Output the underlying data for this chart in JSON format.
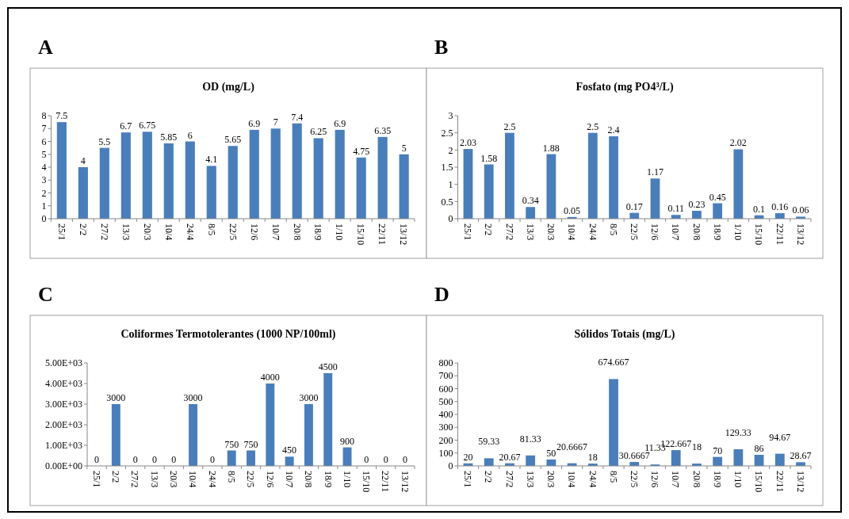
{
  "chart_data": [
    {
      "type": "bar",
      "title": "OD (mg/L)",
      "annotations": [
        "A"
      ],
      "categories": [
        "25/1",
        "2/2",
        "27/2",
        "13/3",
        "20/3",
        "10/4",
        "24/4",
        "8/5",
        "22/5",
        "12/6",
        "10/7",
        "20/8",
        "18/9",
        "1/10",
        "15/10",
        "22/11",
        "13/12"
      ],
      "values": [
        7.5,
        4,
        5.5,
        6.7,
        6.75,
        5.85,
        6,
        4.1,
        5.65,
        6.9,
        7,
        7.4,
        6.25,
        6.9,
        4.75,
        6.35,
        5
      ],
      "color": "#4a7ebb",
      "ylim": [
        0,
        8
      ],
      "yticks": [
        0,
        1,
        2,
        3,
        4,
        5,
        6,
        7,
        8
      ],
      "data_labels": true
    },
    {
      "type": "bar",
      "title": "Fosfato (mg PO4³/L)",
      "annotations": [
        "B"
      ],
      "categories": [
        "25/1",
        "2/2",
        "27/2",
        "13/3",
        "20/3",
        "10/4",
        "24/4",
        "8/5",
        "22/5",
        "12/6",
        "10/7",
        "20/8",
        "18/9",
        "1/10",
        "15/10",
        "22/11",
        "13/12"
      ],
      "values": [
        2.03,
        1.58,
        2.5,
        0.34,
        1.88,
        0.05,
        2.5,
        2.4,
        0.17,
        1.17,
        0.11,
        0.23,
        0.45,
        2.02,
        0.1,
        0.16,
        0.06
      ],
      "color": "#4a7ebb",
      "ylim": [
        0,
        3
      ],
      "yticks": [
        0,
        0.5,
        1,
        1.5,
        2,
        2.5,
        3
      ],
      "data_labels": true
    },
    {
      "type": "bar",
      "title": "Coliformes Termotolerantes (1000 NP/100ml)",
      "annotations": [
        "C"
      ],
      "categories": [
        "25/1",
        "2/2",
        "27/2",
        "13/3",
        "20/3",
        "10/4",
        "24/4",
        "8/5",
        "22/5",
        "12/6",
        "10/7",
        "20/8",
        "18/9",
        "1/10",
        "15/10",
        "22/11",
        "13/12"
      ],
      "values": [
        0,
        3000,
        0,
        0,
        0,
        3000,
        0,
        750,
        750,
        4000,
        450,
        3000,
        4500,
        900,
        0,
        0,
        0
      ],
      "color": "#4a7ebb",
      "ylim": [
        0,
        5000
      ],
      "yticks": [
        {
          "value": 0,
          "label": "0.00E+00"
        },
        {
          "value": 1000,
          "label": "1.00E+03"
        },
        {
          "value": 2000,
          "label": "2.00E+03"
        },
        {
          "value": 3000,
          "label": "3.00E+03"
        },
        {
          "value": 4000,
          "label": "4.00E+03"
        },
        {
          "value": 5000,
          "label": "5.00E+03"
        }
      ],
      "data_labels": true
    },
    {
      "type": "bar",
      "title": "Sólidos Totais (mg/L)",
      "annotations": [
        "D"
      ],
      "categories": [
        "25/1",
        "2/2",
        "27/2",
        "13/3",
        "20/3",
        "10/4",
        "24/4",
        "8/5",
        "22/5",
        "12/6",
        "10/7",
        "20/8",
        "18/9",
        "1/10",
        "15/10",
        "22/11",
        "13/12"
      ],
      "values": [
        20,
        59.33,
        20.67,
        81.33,
        50,
        20.6667,
        18,
        674.667,
        30.6667,
        11.33,
        122.667,
        18,
        70,
        129.33,
        86,
        94.67,
        28.67
      ],
      "color": "#4a7ebb",
      "ylim": [
        0,
        800
      ],
      "yticks": [
        0,
        100,
        200,
        300,
        400,
        500,
        600,
        700,
        800
      ],
      "data_labels": true
    }
  ]
}
